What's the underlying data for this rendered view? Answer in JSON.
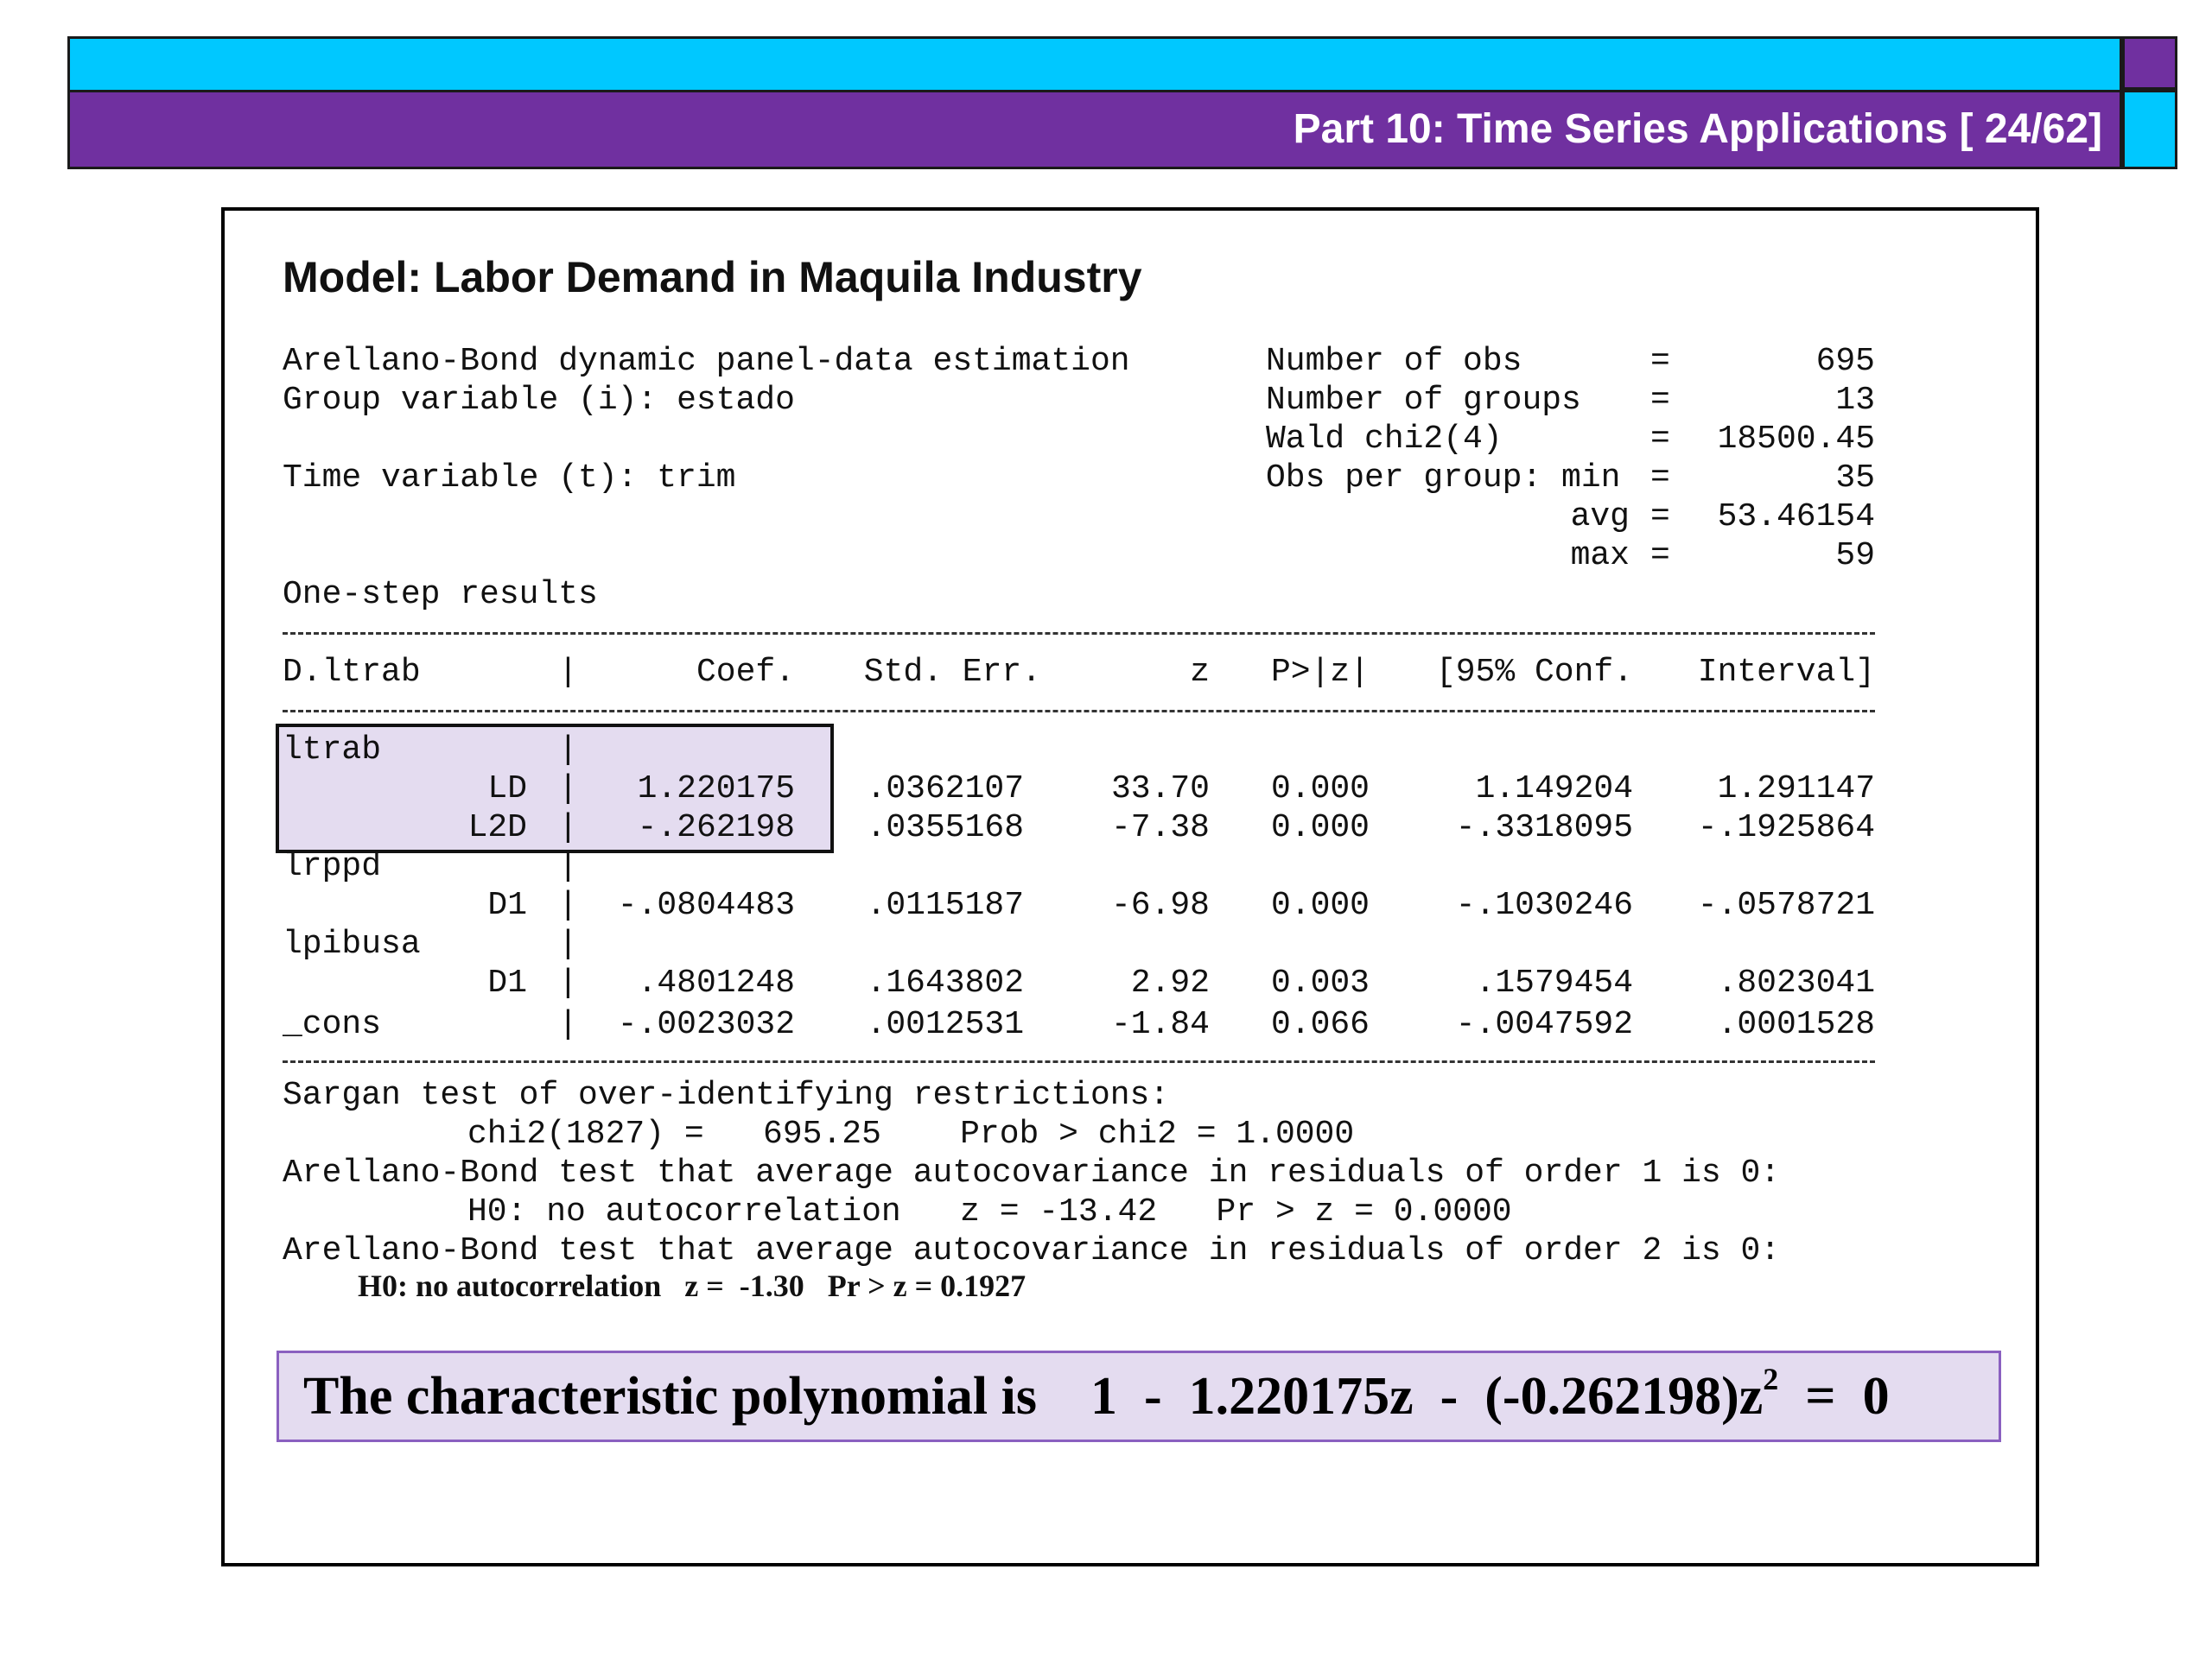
{
  "header": {
    "title": "Part 10: Time Series Applications [ 24/62]",
    "colors": {
      "cyan": "#00c8ff",
      "purple": "#7030a0"
    }
  },
  "model_title": "Model: Labor Demand in Maquila Industry",
  "estimation": {
    "line1": "Arellano-Bond dynamic panel-data estimation",
    "line2": "Group variable (i): estado",
    "line3": "Time variable (t): trim",
    "results": "One-step results"
  },
  "stats": [
    {
      "label": "Number of obs",
      "eq": "=",
      "value": "695"
    },
    {
      "label": "Number of groups",
      "eq": "=",
      "value": "13"
    },
    {
      "label": "Wald chi2(4)",
      "eq": "=",
      "value": "18500.45"
    },
    {
      "label": "Obs per group: min",
      "eq": "=",
      "value": "35"
    },
    {
      "label": "avg",
      "eq": "=",
      "value": "53.46154"
    },
    {
      "label": "max",
      "eq": "=",
      "value": "59"
    }
  ],
  "table": {
    "depvar": "D.ltrab",
    "headers": [
      "Coef.",
      "Std. Err.",
      "z",
      "P>|z|",
      "[95% Conf.",
      "Interval]"
    ],
    "rows": [
      {
        "var": "ltrab",
        "sub": "",
        "coef": "",
        "se": "",
        "z": "",
        "p": "",
        "lo": "",
        "hi": ""
      },
      {
        "var": "",
        "sub": "LD",
        "coef": "1.220175",
        "se": ".0362107",
        "z": "33.70",
        "p": "0.000",
        "lo": "1.149204",
        "hi": "1.291147"
      },
      {
        "var": "",
        "sub": "L2D",
        "coef": "-.262198",
        "se": ".0355168",
        "z": "-7.38",
        "p": "0.000",
        "lo": "-.3318095",
        "hi": "-.1925864"
      },
      {
        "var": "lrppd",
        "sub": "",
        "coef": "",
        "se": "",
        "z": "",
        "p": "",
        "lo": "",
        "hi": ""
      },
      {
        "var": "",
        "sub": "D1",
        "coef": "-.0804483",
        "se": ".0115187",
        "z": "-6.98",
        "p": "0.000",
        "lo": "-.1030246",
        "hi": "-.0578721"
      },
      {
        "var": "lpibusa",
        "sub": "",
        "coef": "",
        "se": "",
        "z": "",
        "p": "",
        "lo": "",
        "hi": ""
      },
      {
        "var": "",
        "sub": "D1",
        "coef": ".4801248",
        "se": ".1643802",
        "z": "2.92",
        "p": "0.003",
        "lo": ".1579454",
        "hi": ".8023041"
      },
      {
        "var": "_cons",
        "sub": "",
        "coef": "-.0023032",
        "se": ".0012531",
        "z": "-1.84",
        "p": "0.066",
        "lo": "-.0047592",
        "hi": ".0001528"
      }
    ]
  },
  "tests": {
    "sargan": "Sargan test of over-identifying restrictions:",
    "sargan_stat": "chi2(1827) =   695.25    Prob > chi2 = 1.0000",
    "ab1": "Arellano-Bond test that average autocovariance in residuals of order 1 is 0:",
    "ab1_stat": "H0: no autocorrelation   z = -13.42   Pr > z = 0.0000",
    "ab2": "Arellano-Bond test that average autocovariance in residuals of order 2 is 0:",
    "ab2_stat": "H0: no autocorrelation   z =  -1.30   Pr > z = 0.1927"
  },
  "polynomial": {
    "prefix": "The characteristic polynomial is    1  -  1.220175z  -  (-0.262198)z",
    "exponent": "2",
    "suffix": "  =  0"
  }
}
